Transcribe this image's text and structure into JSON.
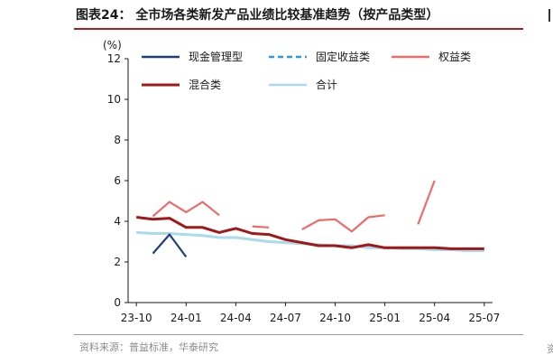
{
  "header": {
    "title": "图表24：  全市场各类新发产品业绩比较基准趋势（按产品类型）"
  },
  "footer": {
    "source": "资料来源：普益标准，华泰研究",
    "right_glyph": "资"
  },
  "chart_data": {
    "type": "line",
    "title": "",
    "xlabel": "",
    "ylabel": "(%)",
    "ylim": [
      0,
      12
    ],
    "yticks": [
      "0",
      "2",
      "4",
      "6",
      "8",
      "10",
      "12"
    ],
    "x": [
      "23-10",
      "23-11",
      "23-12",
      "24-01",
      "24-02",
      "24-03",
      "24-04",
      "24-05",
      "24-06",
      "24-07",
      "24-08",
      "24-09",
      "24-10",
      "24-11",
      "24-12",
      "25-01",
      "25-02",
      "25-03",
      "25-04",
      "25-05",
      "25-06",
      "25-07"
    ],
    "xticks": [
      "23-10",
      "24-01",
      "24-04",
      "24-07",
      "24-10",
      "25-01",
      "25-04",
      "25-07"
    ],
    "legend_position": "top",
    "series": [
      {
        "name": "现金管理型",
        "color": "#1f3f7a",
        "dash": "solid",
        "values": [
          null,
          2.42,
          3.35,
          2.25,
          null,
          null,
          null,
          null,
          null,
          null,
          null,
          null,
          null,
          null,
          null,
          null,
          null,
          null,
          null,
          null,
          null,
          null
        ]
      },
      {
        "name": "固定收益类",
        "color": "#2e9ad8",
        "dash": "dashed",
        "values": [
          null,
          null,
          null,
          null,
          null,
          null,
          null,
          null,
          null,
          null,
          null,
          null,
          null,
          null,
          null,
          null,
          null,
          null,
          null,
          null,
          null,
          null
        ]
      },
      {
        "name": "权益类",
        "color": "#ee6b6b",
        "dash": "solid",
        "values": [
          null,
          4.25,
          4.95,
          4.45,
          4.95,
          4.3,
          null,
          3.75,
          3.7,
          null,
          3.6,
          4.05,
          4.1,
          3.5,
          4.2,
          4.3,
          null,
          3.85,
          6.0,
          null,
          null,
          null
        ]
      },
      {
        "name": "混合类",
        "color": "#a01818",
        "dash": "solid",
        "values": [
          4.2,
          4.1,
          4.15,
          3.7,
          3.7,
          3.45,
          3.65,
          3.4,
          3.35,
          3.1,
          2.95,
          2.8,
          2.8,
          2.7,
          2.85,
          2.7,
          2.7,
          2.7,
          2.7,
          2.65,
          2.65,
          2.65
        ]
      },
      {
        "name": "合计",
        "color": "#a7dbed",
        "dash": "solid",
        "values": [
          3.45,
          3.4,
          3.4,
          3.35,
          3.3,
          3.2,
          3.2,
          3.1,
          3.0,
          2.95,
          2.9,
          2.85,
          2.8,
          2.8,
          2.7,
          2.7,
          2.65,
          2.65,
          2.6,
          2.6,
          2.55,
          2.55
        ]
      }
    ]
  }
}
